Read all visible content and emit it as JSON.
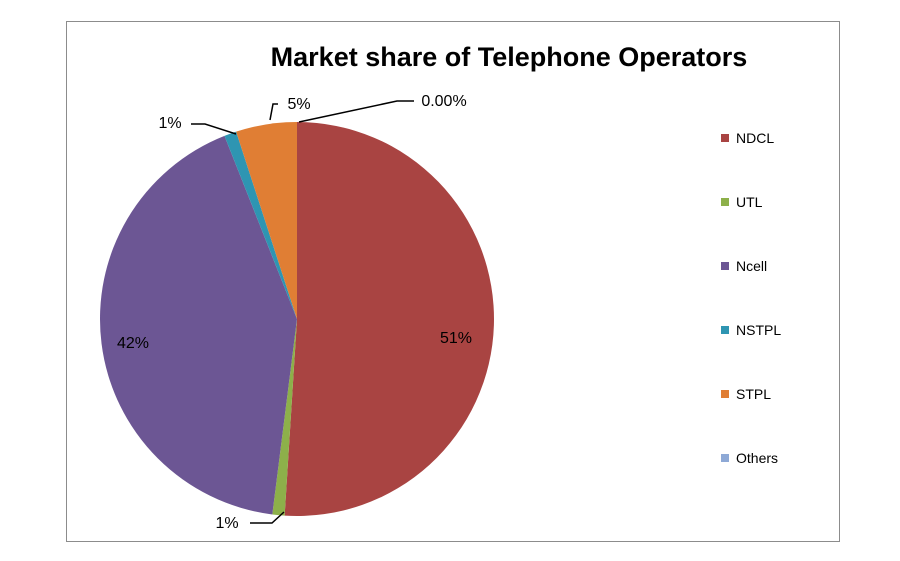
{
  "chart_data": {
    "type": "pie",
    "title": "Market share of Telephone Operators",
    "categories": [
      "NDCL",
      "UTL",
      "Ncell",
      "NSTPL",
      "STPL",
      "Others"
    ],
    "values": [
      51,
      1,
      42,
      1,
      5,
      0.0
    ],
    "data_labels": [
      "51%",
      "1%",
      "42%",
      "1%",
      "5%",
      "0.00%"
    ],
    "colors": [
      "#A94442",
      "#8DB04A",
      "#6C5694",
      "#2E95B2",
      "#E07E34",
      "#8EA9D6"
    ],
    "legend_position": "right",
    "start_angle": "top",
    "direction": "clockwise"
  }
}
